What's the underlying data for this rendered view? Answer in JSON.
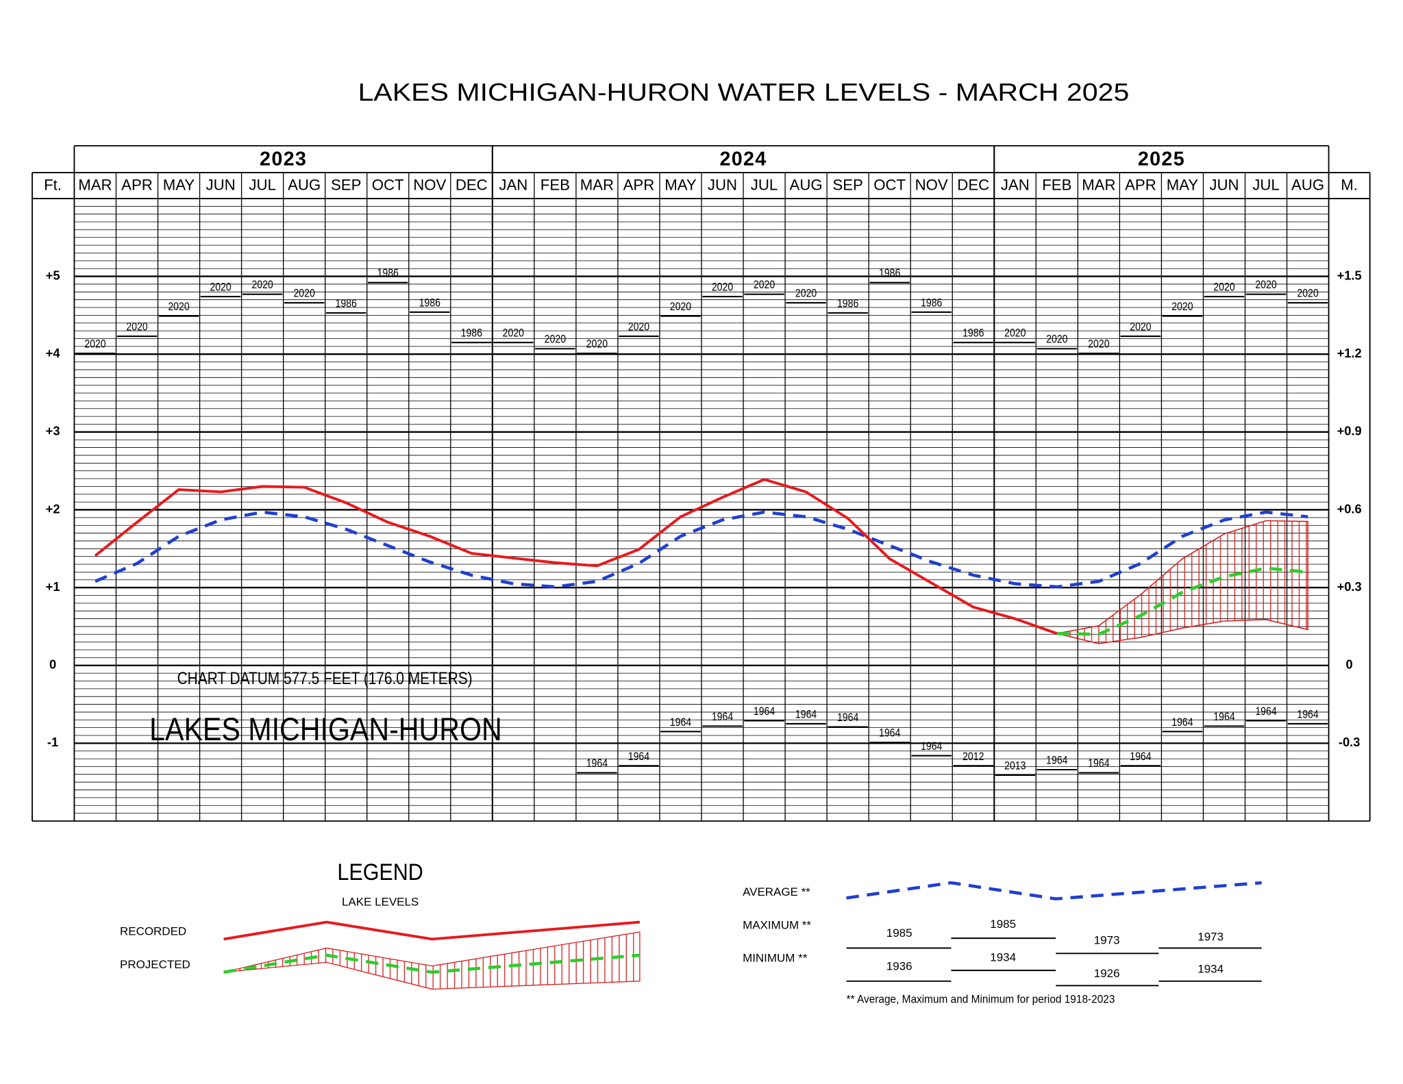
{
  "chart_data": {
    "type": "line",
    "title": "LAKES MICHIGAN-HURON WATER LEVELS - MARCH 2025",
    "y_axis_label": "Ft.",
    "y2_axis_label": "M.",
    "datum_note": "CHART DATUM  577.5 FEET (176.0 METERS)",
    "lake_name": "LAKES MICHIGAN-HURON",
    "year_groups": [
      {
        "label": "2023",
        "categories": [
          "MAR",
          "APR",
          "MAY",
          "JUN",
          "JUL",
          "AUG",
          "SEP",
          "OCT",
          "NOV",
          "DEC"
        ]
      },
      {
        "label": "2024",
        "categories": [
          "JAN",
          "FEB",
          "MAR",
          "APR",
          "MAY",
          "JUN",
          "JUL",
          "AUG",
          "SEP",
          "OCT",
          "NOV",
          "DEC"
        ]
      },
      {
        "label": "2025",
        "categories": [
          "JAN",
          "FEB",
          "MAR",
          "APR",
          "MAY",
          "JUN",
          "JUL",
          "AUG"
        ]
      }
    ],
    "ylim": [
      -2,
      6
    ],
    "yticks": [
      -1,
      0,
      {
        "value": 1,
        "label": "+1"
      },
      {
        "value": 2,
        "label": "+2"
      },
      {
        "value": 3,
        "label": "+3"
      },
      {
        "value": 4,
        "label": "+4"
      },
      {
        "value": 5,
        "label": "+5"
      }
    ],
    "y2lim": [
      -0.6096,
      1.8288
    ],
    "y2ticks": [
      {
        "value": -0.3048,
        "label": "-0.3"
      },
      0,
      {
        "value": 0.3048,
        "label": "+0.3"
      },
      {
        "value": 0.6096,
        "label": "+0.6"
      },
      {
        "value": 0.9144,
        "label": "+0.9"
      },
      {
        "value": 1.2192,
        "label": "+1.2"
      },
      {
        "value": 1.524,
        "label": "+1.5"
      }
    ],
    "minor_grid": 0.1,
    "grid": true,
    "series": [
      {
        "name": "RECORDED",
        "color": "#e8191d",
        "dash": "solid",
        "values": [
          1.41,
          1.84,
          2.26,
          2.23,
          2.3,
          2.29,
          2.09,
          1.84,
          1.66,
          1.44,
          1.38,
          1.32,
          1.28,
          1.49,
          1.91,
          2.16,
          2.39,
          2.23,
          1.89,
          1.37,
          1.06,
          0.75,
          0.6,
          0.41,
          null,
          null,
          null,
          null,
          null,
          null
        ]
      },
      {
        "name": "PROJECTED",
        "color": "#2ecc2e",
        "dash": "dashed",
        "values": [
          null,
          null,
          null,
          null,
          null,
          null,
          null,
          null,
          null,
          null,
          null,
          null,
          null,
          null,
          null,
          null,
          null,
          null,
          null,
          null,
          null,
          null,
          null,
          0.41,
          0.4,
          0.64,
          0.94,
          1.14,
          1.25,
          1.2
        ]
      },
      {
        "name": "AVERAGE **",
        "color": "#1f3fd0",
        "dash": "dashed",
        "values": [
          1.08,
          1.31,
          1.66,
          1.87,
          1.97,
          1.91,
          1.75,
          1.54,
          1.33,
          1.16,
          1.05,
          1.01,
          1.08,
          1.31,
          1.66,
          1.87,
          1.97,
          1.91,
          1.75,
          1.54,
          1.33,
          1.16,
          1.05,
          1.01,
          1.08,
          1.31,
          1.66,
          1.87,
          1.97,
          1.91
        ]
      }
    ],
    "projection_range": {
      "color": "#d42020",
      "upper": [
        null,
        null,
        null,
        null,
        null,
        null,
        null,
        null,
        null,
        null,
        null,
        null,
        null,
        null,
        null,
        null,
        null,
        null,
        null,
        null,
        null,
        null,
        null,
        0.41,
        0.51,
        0.91,
        1.37,
        1.69,
        1.86,
        1.85
      ],
      "lower": [
        null,
        null,
        null,
        null,
        null,
        null,
        null,
        null,
        null,
        null,
        null,
        null,
        null,
        null,
        null,
        null,
        null,
        null,
        null,
        null,
        null,
        null,
        null,
        0.41,
        0.28,
        0.36,
        0.48,
        0.57,
        0.59,
        0.46
      ]
    },
    "maximum": {
      "name": "MAXIMUM **",
      "values": [
        4.01,
        4.23,
        4.49,
        4.74,
        4.77,
        4.66,
        4.53,
        4.92,
        4.54,
        4.15,
        4.15,
        4.07,
        4.01,
        4.23,
        4.49,
        4.74,
        4.77,
        4.66,
        4.53,
        4.92,
        4.54,
        4.15,
        4.15,
        4.07,
        4.01,
        4.23,
        4.49,
        4.74,
        4.77,
        4.66
      ],
      "labels": [
        "2020",
        "2020",
        "2020",
        "2020",
        "2020",
        "2020",
        "1986",
        "1986",
        "1986",
        "1986",
        "2020",
        "2020",
        "2020",
        "2020",
        "2020",
        "2020",
        "2020",
        "2020",
        "1986",
        "1986",
        "1986",
        "1986",
        "2020",
        "2020",
        "2020",
        "2020",
        "2020",
        "2020",
        "2020",
        "2020"
      ]
    },
    "minimum": {
      "name": "MINIMUM **",
      "values": [
        null,
        null,
        null,
        null,
        null,
        null,
        null,
        null,
        null,
        null,
        null,
        null,
        -1.38,
        -1.29,
        -0.85,
        -0.78,
        -0.71,
        -0.75,
        -0.79,
        -0.99,
        -1.16,
        -1.29,
        -1.41,
        -1.34,
        -1.38,
        -1.29,
        -0.85,
        -0.78,
        -0.71,
        -0.75
      ],
      "labels": [
        null,
        null,
        null,
        null,
        null,
        null,
        null,
        null,
        null,
        null,
        null,
        null,
        "1964",
        "1964",
        "1964",
        "1964",
        "1964",
        "1964",
        "1964",
        "1964",
        "1964",
        "2012",
        "2013",
        "1964",
        "1964",
        "1964",
        "1964",
        "1964",
        "1964",
        "1964"
      ]
    },
    "legend": {
      "title": "LEGEND",
      "subtitle": "LAKE LEVELS",
      "max_years": [
        "1985",
        "1985",
        "1973",
        "1973"
      ],
      "min_years": [
        "1936",
        "1934",
        "1926",
        "1934"
      ],
      "footnote": "** Average, Maximum and Minimum for period 1918-2023"
    }
  }
}
